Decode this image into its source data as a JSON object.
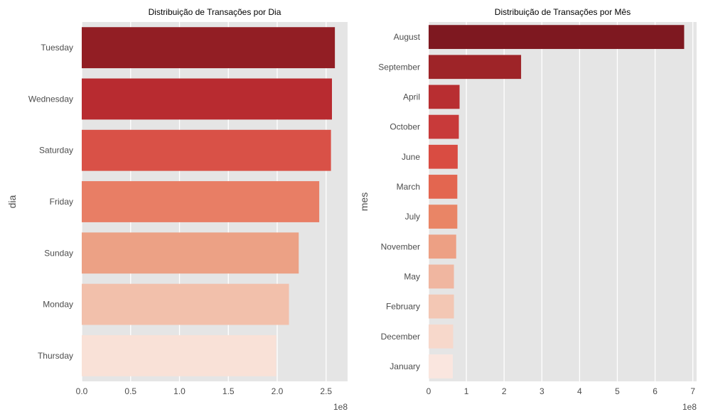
{
  "chart_data": [
    {
      "type": "bar",
      "orientation": "horizontal",
      "title": "Distribuição de Transações por Dia",
      "ylabel": "dia",
      "xlabel": "",
      "x_offset_label": "1e8",
      "categories": [
        "Tuesday",
        "Wednesday",
        "Saturday",
        "Friday",
        "Sunday",
        "Monday",
        "Thursday"
      ],
      "values": [
        2.59,
        2.56,
        2.55,
        2.43,
        2.22,
        2.12,
        1.99
      ],
      "value_scale": 100000000,
      "xlim": [
        0,
        2.72
      ],
      "xticks": [
        0,
        0.5,
        1.0,
        1.5,
        2.0,
        2.5
      ],
      "xtick_labels": [
        "0.0",
        "0.5",
        "1.0",
        "1.5",
        "2.0",
        "2.5"
      ],
      "colors": [
        "#921e24",
        "#b82b30",
        "#d95147",
        "#e87e65",
        "#eca185",
        "#f2c0ab",
        "#f9e1d7"
      ],
      "grid": true,
      "background": "#e5e5e5"
    },
    {
      "type": "bar",
      "orientation": "horizontal",
      "title": "Distribuição de Transações por Mês",
      "ylabel": "mes",
      "xlabel": "",
      "x_offset_label": "1e8",
      "categories": [
        "August",
        "September",
        "April",
        "October",
        "June",
        "March",
        "July",
        "November",
        "May",
        "February",
        "December",
        "January"
      ],
      "values": [
        6.77,
        2.45,
        0.82,
        0.8,
        0.77,
        0.76,
        0.76,
        0.73,
        0.67,
        0.67,
        0.65,
        0.64
      ],
      "value_scale": 100000000,
      "xlim": [
        0,
        7.1
      ],
      "xticks": [
        0,
        1,
        2,
        3,
        4,
        5,
        6,
        7
      ],
      "xtick_labels": [
        "0",
        "1",
        "2",
        "3",
        "4",
        "5",
        "6",
        "7"
      ],
      "colors": [
        "#7e1820",
        "#9e2428",
        "#b82e31",
        "#c83a3a",
        "#d94c42",
        "#e36650",
        "#e98566",
        "#eda084",
        "#f0b6a0",
        "#f3c7b4",
        "#f7d8cb",
        "#fae6df"
      ],
      "grid": true,
      "background": "#e5e5e5"
    }
  ]
}
